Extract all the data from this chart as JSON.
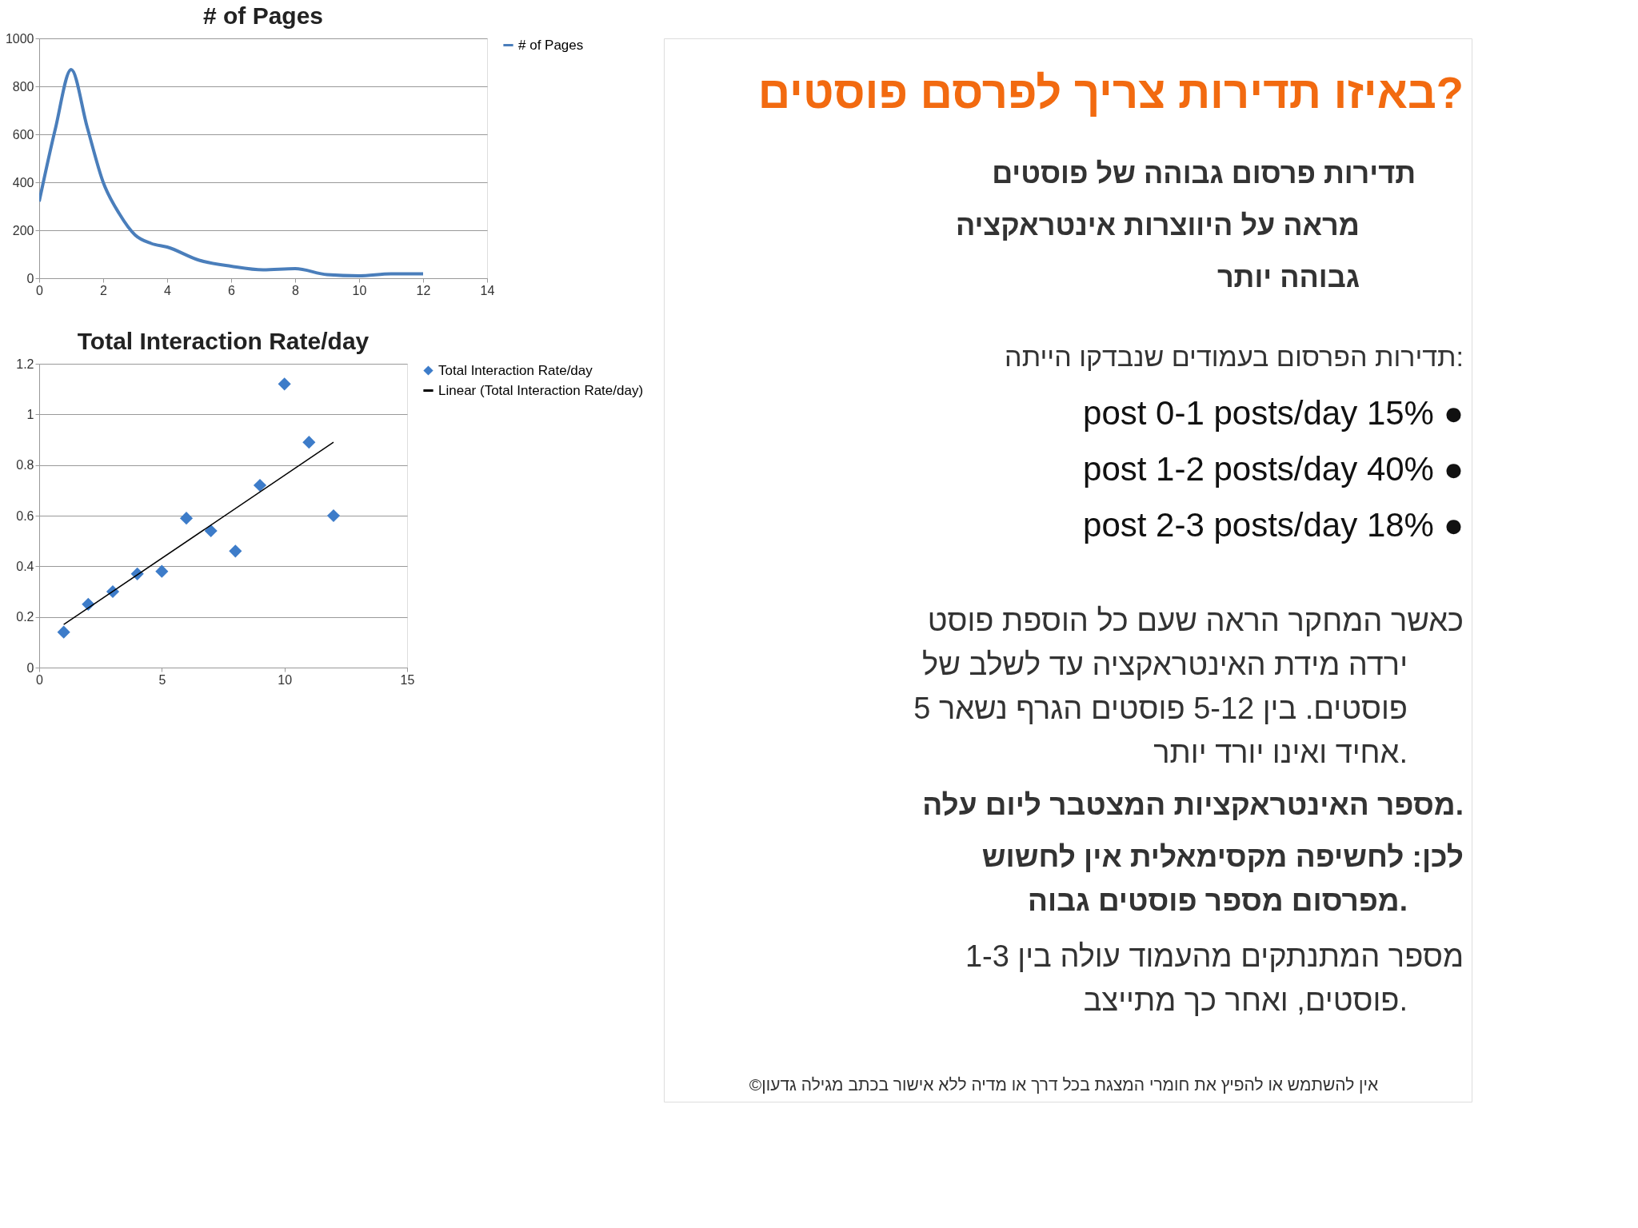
{
  "chart_data": [
    {
      "type": "line",
      "title": "# of Pages",
      "xlim": [
        0,
        14
      ],
      "xticks": [
        0,
        2,
        4,
        6,
        8,
        10,
        12,
        14
      ],
      "ylim": [
        0,
        1000
      ],
      "yticks": [
        0,
        200,
        400,
        600,
        800,
        1000
      ],
      "grid": "y",
      "legend": "right",
      "marker": "none",
      "line_style": "solid",
      "series": [
        {
          "name": "# of Pages",
          "color": "#4a7ebb",
          "x": [
            0,
            0.5,
            1,
            1.5,
            2,
            2.5,
            3,
            3.5,
            4,
            5,
            6,
            7,
            8,
            9,
            10,
            11,
            12
          ],
          "values": [
            320,
            620,
            870,
            630,
            400,
            270,
            180,
            145,
            130,
            75,
            50,
            35,
            40,
            15,
            10,
            18,
            18
          ]
        }
      ]
    },
    {
      "type": "scatter",
      "title": "Total Interaction Rate/day",
      "xlim": [
        0,
        15
      ],
      "xticks": [
        0,
        5,
        10,
        15
      ],
      "ylim": [
        0,
        1.2
      ],
      "yticks": [
        0,
        0.2,
        0.4,
        0.6,
        0.8,
        1,
        1.2
      ],
      "grid": "y",
      "legend": "right",
      "series": [
        {
          "name": "Total Interaction Rate/day",
          "color": "#3d7cc9",
          "marker": "diamond",
          "x": [
            1,
            2,
            3,
            4,
            5,
            6,
            7,
            8,
            9,
            10,
            11,
            12
          ],
          "values": [
            0.14,
            0.25,
            0.3,
            0.37,
            0.38,
            0.59,
            0.54,
            0.46,
            0.72,
            1.12,
            0.89,
            0.6
          ]
        },
        {
          "name": "Linear (Total Interaction Rate/day)",
          "type": "line",
          "color": "#000000",
          "marker": "none",
          "line_style": "solid",
          "x": [
            1,
            12
          ],
          "values": [
            0.17,
            0.89
          ]
        }
      ]
    },
    {
      "type": "other",
      "title": "באיזו תדירות צריך לפרסם פוסטים?",
      "annotations": [
        "תדירות פרסום גבוהה של פוסטים",
        "מראה על היווצרות אינטראקציה",
        "גבוהה יותר",
        "תדירות הפרסום בעמודים שנבדקו הייתה:",
        "post 0-1 posts/day 15% ●",
        "post 1-2 posts/day 40% ●",
        "post 2-3 posts/day 18% ●",
        "כאשר המחקר הראה שעם כל הוספת פוסט",
        "ירדה מידת האינטראקציה עד לשלב של",
        "5 פוסטים. בין 5-12 פוסטים הגרף נשאר",
        "אחיד ואינו יורד יותר.",
        "מספר האינטראקציות המצטבר ליום עלה.",
        "לכן: לחשיפה מקסימאלית אין לחשוש",
        "מפרסום מספר פוסטים גבוה.",
        "מספר המתנתקים מהעמוד עולה בין 1-3",
        "פוסטים, ואחר כך מתייצב.",
        "©אין להשתמש או להפיץ את חומרי המצגת בכל דרך או מדיה ללא אישור בכתב מגילה גדעון"
      ]
    }
  ]
}
